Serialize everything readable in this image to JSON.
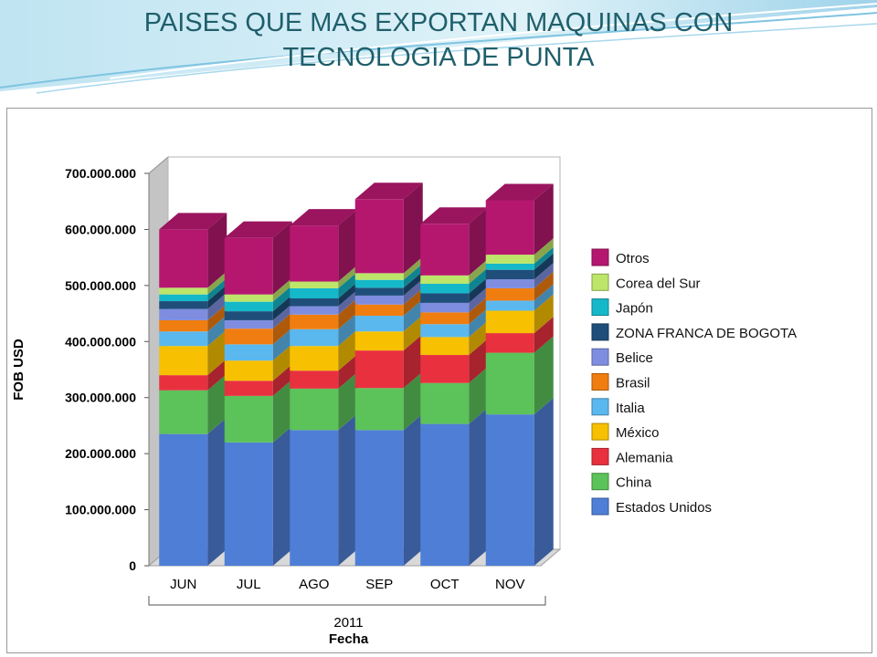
{
  "slide": {
    "title_line1": "PAISES QUE MAS EXPORTAN MAQUINAS CON",
    "title_line2": "TECNOLOGIA DE PUNTA"
  },
  "chart_data": {
    "type": "bar",
    "stacked": true,
    "three_d": true,
    "categories": [
      "JUN",
      "JUL",
      "AGO",
      "SEP",
      "OCT",
      "NOV"
    ],
    "category_group": "2011",
    "xlabel": "Fecha",
    "ylabel": "FOB USD",
    "ylim": [
      0,
      700000000
    ],
    "y_ticks": [
      0,
      100000000,
      200000000,
      300000000,
      400000000,
      500000000,
      600000000,
      700000000
    ],
    "y_tick_labels": [
      "0",
      "100.000.000",
      "200.000.000",
      "300.000.000",
      "400.000.000",
      "500.000.000",
      "600.000.000",
      "700.000.000"
    ],
    "grid": false,
    "legend_position": "right",
    "series": [
      {
        "name": "Estados Unidos",
        "color": "#4f7ed6",
        "values": [
          235000000,
          220000000,
          242000000,
          242000000,
          253000000,
          270000000
        ]
      },
      {
        "name": "China",
        "color": "#5cc25a",
        "values": [
          78000000,
          83000000,
          74000000,
          75000000,
          73000000,
          110000000
        ]
      },
      {
        "name": "Alemania",
        "color": "#e8303f",
        "values": [
          27000000,
          27000000,
          32000000,
          67000000,
          50000000,
          35000000
        ]
      },
      {
        "name": "México",
        "color": "#f7c000",
        "values": [
          52000000,
          36000000,
          44000000,
          34000000,
          32000000,
          40000000
        ]
      },
      {
        "name": "Italia",
        "color": "#5bb8ee",
        "values": [
          26000000,
          29000000,
          30000000,
          28000000,
          23000000,
          18000000
        ]
      },
      {
        "name": "Brasil",
        "color": "#f07d10",
        "values": [
          20000000,
          28000000,
          26000000,
          20000000,
          21000000,
          22000000
        ]
      },
      {
        "name": "Belice",
        "color": "#7f8de0",
        "values": [
          20000000,
          15000000,
          15000000,
          16000000,
          17000000,
          16000000
        ]
      },
      {
        "name": "ZONA FRANCA DE BOGOTA",
        "color": "#1f4e7a",
        "values": [
          14000000,
          16000000,
          14000000,
          14000000,
          17000000,
          17000000
        ]
      },
      {
        "name": "Japón",
        "color": "#15b8c9",
        "values": [
          12000000,
          17000000,
          18000000,
          14000000,
          17000000,
          11000000
        ]
      },
      {
        "name": "Corea del Sur",
        "color": "#bde56a",
        "values": [
          12000000,
          13000000,
          12000000,
          12000000,
          15000000,
          16000000
        ]
      },
      {
        "name": "Otros",
        "color": "#b5176f",
        "values": [
          104000000,
          101000000,
          100000000,
          132000000,
          92000000,
          97000000
        ]
      }
    ]
  }
}
